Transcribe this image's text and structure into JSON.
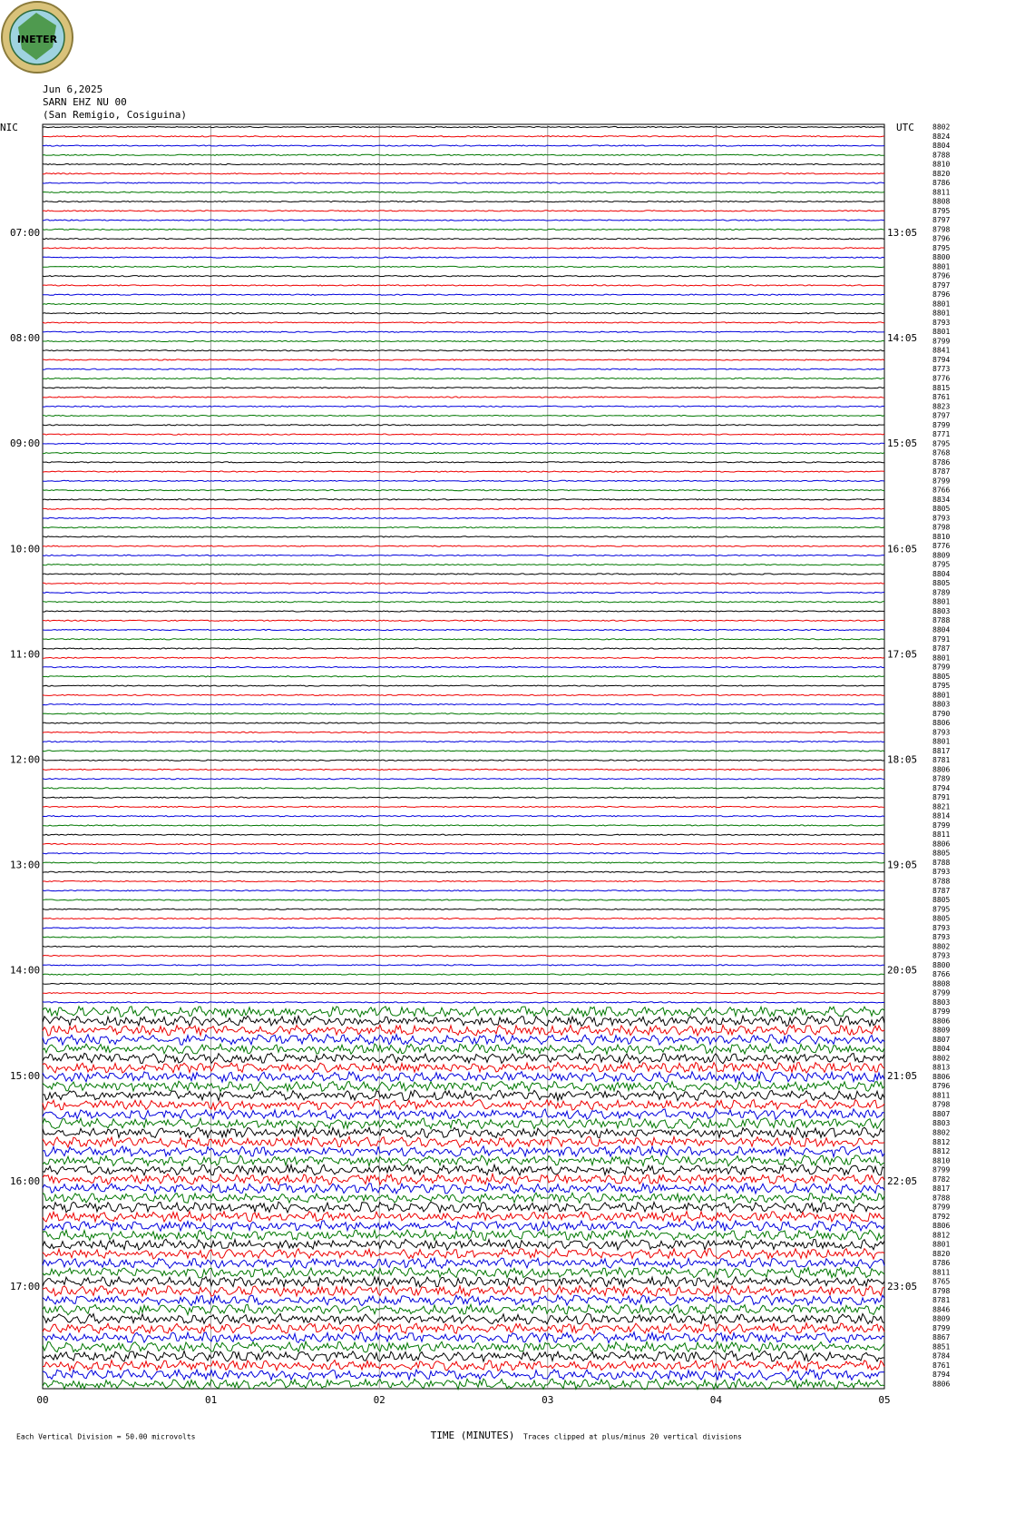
{
  "logo": {
    "text": "INETER"
  },
  "header": {
    "date": "Jun 6,2025",
    "station": "SARN EHZ NU 00",
    "location": "(San Remigio, Cosiguina)"
  },
  "left_zone": "NIC",
  "right_zone": "UTC",
  "left_times": [
    "07:00",
    "08:00",
    "09:00",
    "10:00",
    "11:00",
    "12:00",
    "13:00",
    "14:00",
    "15:00",
    "16:00",
    "17:00"
  ],
  "right_times": [
    "13:05",
    "14:05",
    "15:05",
    "16:05",
    "17:05",
    "18:05",
    "19:05",
    "20:05",
    "21:05",
    "22:05",
    "23:05"
  ],
  "row_labels": [
    "8802",
    "8824",
    "8804",
    "8788",
    "8810",
    "8820",
    "8786",
    "8811",
    "8808",
    "8795",
    "8797",
    "8798",
    "8796",
    "8795",
    "8800",
    "8801",
    "8796",
    "8797",
    "8796",
    "8801",
    "8801",
    "8793",
    "8801",
    "8799",
    "8841",
    "8794",
    "8773",
    "8776",
    "8815",
    "8761",
    "8823",
    "8797",
    "8799",
    "8771",
    "8795",
    "8768",
    "8786",
    "8787",
    "8799",
    "8766",
    "8834",
    "8805",
    "8793",
    "8798",
    "8810",
    "8776",
    "8809",
    "8795",
    "8804",
    "8805",
    "8789",
    "8801",
    "8803",
    "8788",
    "8804",
    "8791",
    "8787",
    "8801",
    "8799",
    "8805",
    "8795",
    "8801",
    "8803",
    "8790",
    "8806",
    "8793",
    "8801",
    "8817",
    "8781",
    "8806",
    "8789",
    "8794",
    "8791",
    "8821",
    "8814",
    "8799",
    "8811",
    "8806",
    "8805",
    "8788",
    "8793",
    "8788",
    "8787",
    "8805",
    "8795",
    "8805",
    "8793",
    "8793",
    "8802",
    "8793",
    "8800",
    "8766",
    "8808",
    "8799",
    "8803",
    "8799",
    "8806",
    "8809",
    "8807",
    "8804",
    "8802",
    "8813",
    "8806",
    "8796",
    "8811",
    "8798",
    "8807",
    "8803",
    "8802",
    "8812",
    "8812",
    "8810",
    "8799",
    "8782",
    "8817",
    "8788",
    "8799",
    "8792",
    "8806",
    "8812",
    "8801",
    "8820",
    "8786",
    "8811",
    "8765",
    "8798",
    "8781",
    "8846",
    "8809",
    "8799",
    "8867",
    "8851",
    "8784",
    "8761",
    "8794",
    "8806"
  ],
  "x_ticks": [
    "00",
    "01",
    "02",
    "03",
    "04",
    "05"
  ],
  "x_title": "TIME (MINUTES)",
  "footer": {
    "division": "Each Vertical Division =   50.00 microvolts",
    "clip": "Traces clipped at plus/minus 20 vertical divisions"
  }
}
